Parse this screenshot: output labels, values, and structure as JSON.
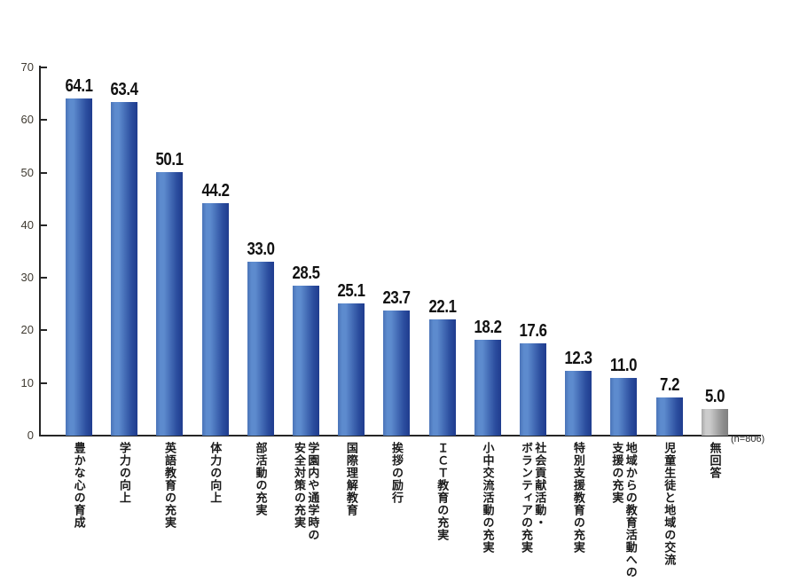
{
  "chart_data": {
    "type": "bar",
    "title": "",
    "xlabel": "",
    "ylabel": "",
    "ylim": [
      0,
      70
    ],
    "y_ticks": [
      0,
      10,
      20,
      30,
      40,
      50,
      60,
      70
    ],
    "grid": false,
    "legend": "none",
    "note": "(n=806)",
    "categories": [
      "豊かな心の育成",
      "学力の向上",
      "英語教育の充実",
      "体力の向上",
      "部活動の充実",
      "学園内や通学時の\n安全対策の充実",
      "国際理解教育",
      "挨拶の励行",
      "ＩＣＴ教育の充実",
      "小中交流活動の充実",
      "社会貢献活動・\nボランティアの充実",
      "特別支援教育の充実",
      "地域からの教育活動への\n支援の充実",
      "児童生徒と地域の交流",
      "無回答"
    ],
    "values": [
      64.1,
      63.4,
      50.1,
      44.2,
      33.0,
      28.5,
      25.1,
      23.7,
      22.1,
      18.2,
      17.6,
      12.3,
      11.0,
      7.2,
      5.0
    ],
    "values_display": [
      "64.1",
      "63.4",
      "50.1",
      "44.2",
      "33.0",
      "28.5",
      "25.1",
      "23.7",
      "22.1",
      "18.2",
      "17.6",
      "12.3",
      "11.0",
      "7.2",
      "5.0"
    ],
    "bar_styles": [
      "blue",
      "blue",
      "blue",
      "blue",
      "blue",
      "blue",
      "blue",
      "blue",
      "blue",
      "blue",
      "blue",
      "blue",
      "blue",
      "blue",
      "gray"
    ],
    "colors": {
      "bar_blue_edge": "#4a74b8",
      "bar_blue_light": "#5d8bce",
      "bar_blue_mid": "#2b4d9e",
      "bar_blue_dark": "#1f3c8e",
      "bar_gray_edge": "#a9a9a9",
      "bar_gray_light": "#cccccc",
      "bar_gray_mid": "#909090",
      "bar_gray_dark": "#7f7f7f",
      "axis": "#262626",
      "value_text": "#111111",
      "tick_text": "#3f3a31",
      "note_text": "#2b2b2b"
    }
  }
}
